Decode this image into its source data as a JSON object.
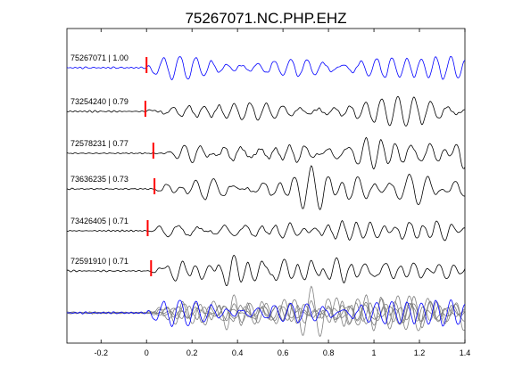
{
  "chart_data": {
    "type": "line",
    "title": "75267071.NC.PHP.EHZ",
    "xlabel": "",
    "ylabel": "",
    "xlim": [
      -0.35,
      1.4
    ],
    "xticks": [
      -0.2,
      0,
      0.2,
      0.4,
      0.6,
      0.8,
      1,
      1.2,
      1.4
    ],
    "x_tick_labels": [
      "-0.2",
      "0",
      "0.2",
      "0.4",
      "0.6",
      "0.8",
      "1",
      "1.2",
      "1.4"
    ],
    "grid": false,
    "legend": "none",
    "colors": {
      "reference": "#0000ff",
      "trace": "#000000",
      "stack": "#808080",
      "pick": "#ff0000"
    },
    "series": [
      {
        "label": "75267071 | 1.00",
        "color": "#0000ff",
        "pick_time": 0.0,
        "seed": 1
      },
      {
        "label": "73254240 | 0.79",
        "color": "#000000",
        "pick_time": -0.005,
        "seed": 2
      },
      {
        "label": "72578231 | 0.77",
        "color": "#000000",
        "pick_time": 0.03,
        "seed": 3
      },
      {
        "label": "73636235 | 0.73",
        "color": "#000000",
        "pick_time": 0.035,
        "seed": 4
      },
      {
        "label": "73426405 | 0.71",
        "color": "#000000",
        "pick_time": 0.005,
        "seed": 5
      },
      {
        "label": "72591910 | 0.71",
        "color": "#000000",
        "pick_time": 0.02,
        "seed": 6
      }
    ]
  }
}
